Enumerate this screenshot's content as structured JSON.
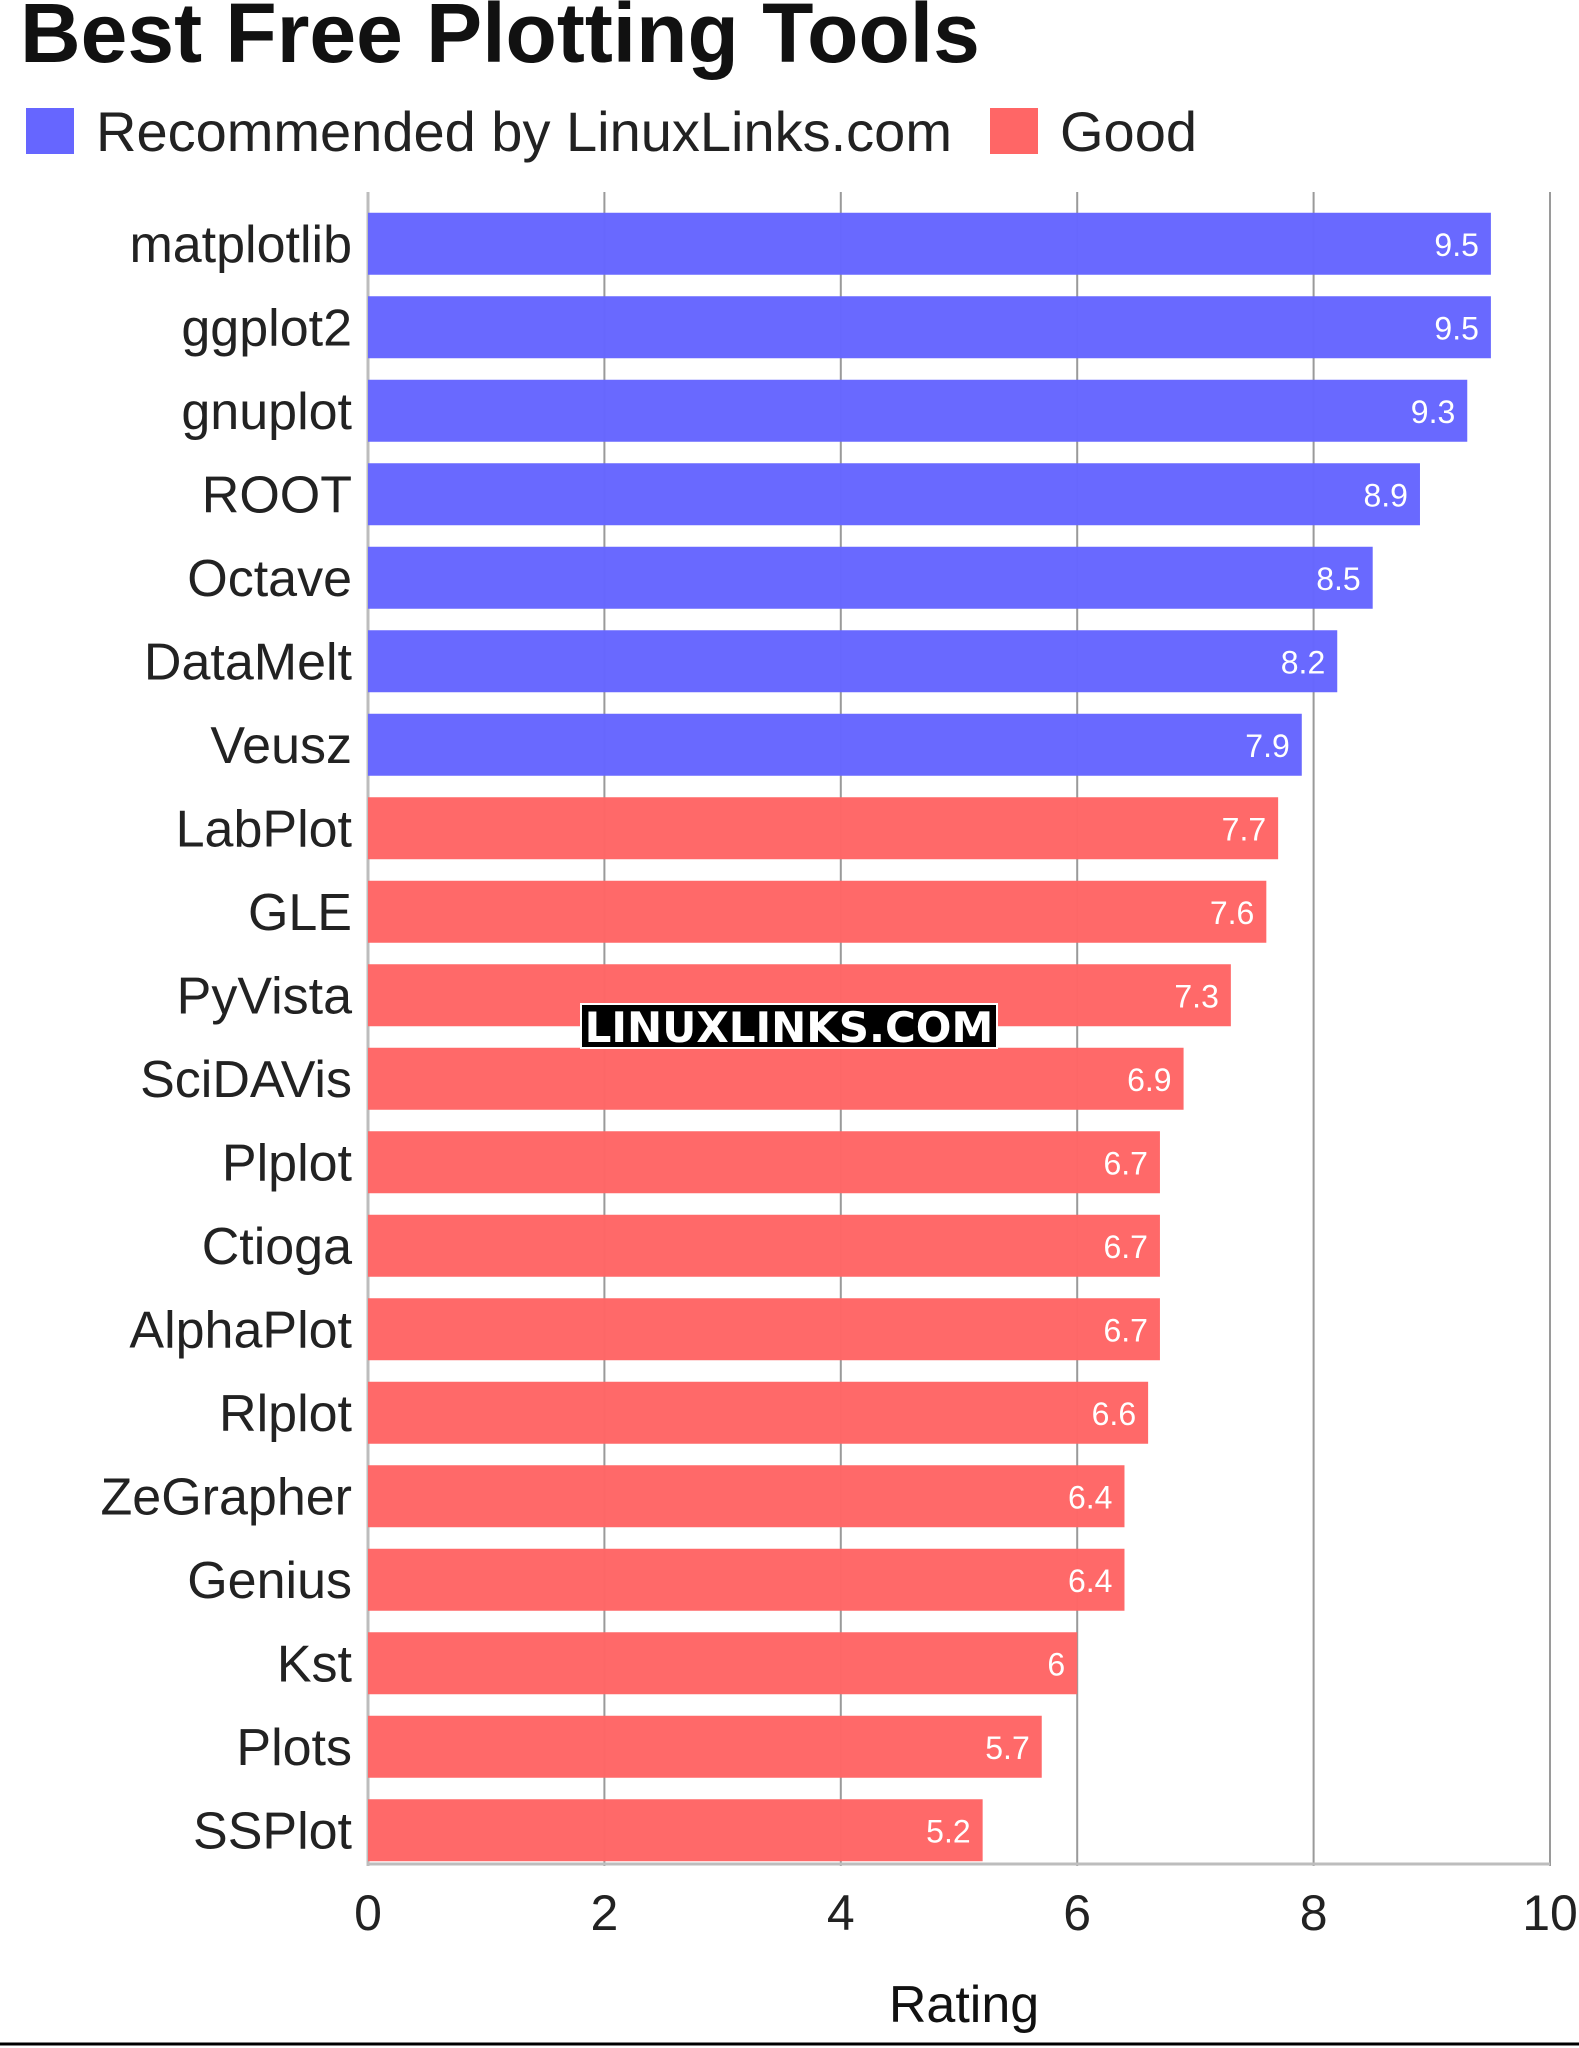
{
  "chart_data": {
    "type": "bar",
    "orientation": "horizontal",
    "title": "Best Free Plotting Tools",
    "xlabel": "Rating",
    "ylabel": "",
    "xlim": [
      0,
      10
    ],
    "xticks": [
      0,
      2,
      4,
      6,
      8,
      10
    ],
    "grid": true,
    "legend": {
      "position": "top-left",
      "entries": [
        {
          "name": "Recommended by LinuxLinks.com",
          "color": "#6666ff"
        },
        {
          "name": "Good",
          "color": "#ff6666"
        }
      ]
    },
    "categories": [
      "matplotlib",
      "ggplot2",
      "gnuplot",
      "ROOT",
      "Octave",
      "DataMelt",
      "Veusz",
      "LabPlot",
      "GLE",
      "PyVista",
      "SciDAVis",
      "Plplot",
      "Ctioga",
      "AlphaPlot",
      "Rlplot",
      "ZeGrapher",
      "Genius",
      "Kst",
      "Plots",
      "SSPlot"
    ],
    "values": [
      9.5,
      9.5,
      9.3,
      8.9,
      8.5,
      8.2,
      7.9,
      7.7,
      7.6,
      7.3,
      6.9,
      6.7,
      6.7,
      6.7,
      6.6,
      6.4,
      6.4,
      6,
      5.7,
      5.2
    ],
    "groups": [
      "Recommended by LinuxLinks.com",
      "Recommended by LinuxLinks.com",
      "Recommended by LinuxLinks.com",
      "Recommended by LinuxLinks.com",
      "Recommended by LinuxLinks.com",
      "Recommended by LinuxLinks.com",
      "Recommended by LinuxLinks.com",
      "Good",
      "Good",
      "Good",
      "Good",
      "Good",
      "Good",
      "Good",
      "Good",
      "Good",
      "Good",
      "Good",
      "Good",
      "Good"
    ],
    "value_labels": [
      "9.5",
      "9.5",
      "9.3",
      "8.9",
      "8.5",
      "8.2",
      "7.9",
      "7.7",
      "7.6",
      "7.3",
      "6.9",
      "6.7",
      "6.7",
      "6.7",
      "6.6",
      "6.4",
      "6.4",
      "6",
      "5.7",
      "5.2"
    ]
  },
  "watermark": "LINUXLINKS.COM"
}
